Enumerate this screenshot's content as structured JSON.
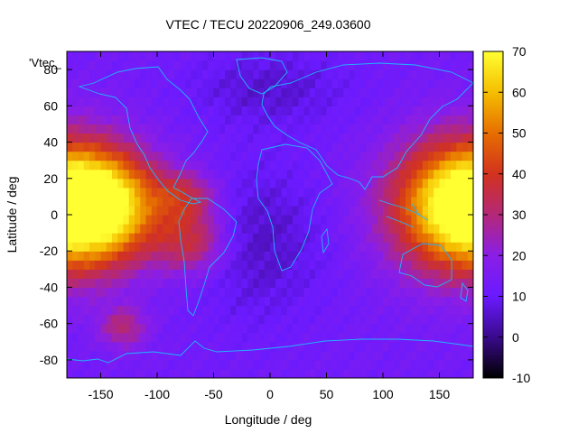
{
  "chart_data": {
    "type": "heatmap",
    "title": "VTEC / TECU 20220906_249.03600",
    "xlabel": "Longitude / deg",
    "ylabel": "Latitude / deg",
    "key_label": "'Vtec_",
    "xlim": [
      -180,
      180
    ],
    "ylim": [
      -90,
      90
    ],
    "xticks": [
      -150,
      -100,
      -50,
      0,
      50,
      100,
      150
    ],
    "yticks": [
      -80,
      -60,
      -40,
      -20,
      0,
      20,
      40,
      60,
      80
    ],
    "colorbar": {
      "min": -10,
      "max": 70,
      "ticks": [
        -10,
        0,
        10,
        20,
        30,
        40,
        50,
        60,
        70
      ]
    },
    "colormap": [
      "#000000",
      "#3a0a8c",
      "#6a1aff",
      "#8a1ee6",
      "#b42878",
      "#d2321e",
      "#e66e00",
      "#f5be00",
      "#ffff32"
    ],
    "background_value": 13,
    "features": [
      {
        "name": "Pacific equatorial anomaly",
        "lon": -160,
        "lat": 5,
        "peak": 58,
        "width_lon": 35,
        "width_lat": 22
      },
      {
        "name": "Western Pacific anomaly",
        "lon": 160,
        "lat": 5,
        "peak": 60,
        "width_lon": 40,
        "width_lat": 25
      },
      {
        "name": "Central Pacific",
        "lon": -130,
        "lat": 5,
        "peak": 32,
        "width_lon": 30,
        "width_lat": 20
      },
      {
        "name": "South America crest",
        "lon": -70,
        "lat": -15,
        "peak": 35,
        "width_lon": 22,
        "width_lat": 12
      },
      {
        "name": "Caribbean crest",
        "lon": -75,
        "lat": 10,
        "peak": 33,
        "width_lon": 20,
        "width_lat": 10
      },
      {
        "name": "Southern Pacific patch",
        "lon": -130,
        "lat": -62,
        "peak": 30,
        "width_lon": 15,
        "width_lat": 8
      },
      {
        "name": "Atlantic depletion",
        "lon": -10,
        "lat": -15,
        "peak": 5,
        "width_lon": 40,
        "width_lat": 30
      },
      {
        "name": "North Atlantic depletion",
        "lon": 0,
        "lat": 70,
        "peak": 6,
        "width_lon": 50,
        "width_lat": 15
      }
    ]
  }
}
